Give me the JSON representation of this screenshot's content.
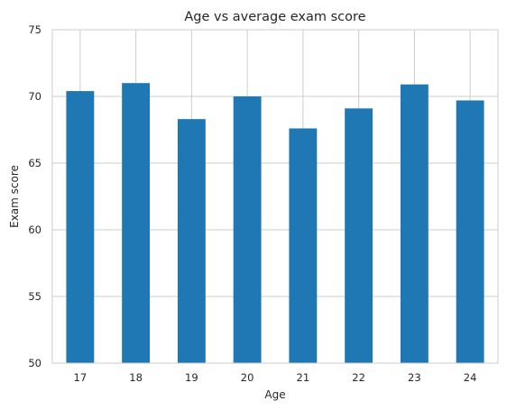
{
  "chart_data": {
    "type": "bar",
    "title": "Age vs average exam score",
    "xlabel": "Age",
    "ylabel": "Exam score",
    "categories": [
      "17",
      "18",
      "19",
      "20",
      "21",
      "22",
      "23",
      "24"
    ],
    "values": [
      70.4,
      71.0,
      68.3,
      70.0,
      67.6,
      69.1,
      70.9,
      69.7
    ],
    "ylim": [
      50,
      75
    ],
    "yticks": [
      "50",
      "55",
      "60",
      "65",
      "70",
      "75"
    ],
    "grid": true,
    "legend": "none",
    "colors": {
      "bar": "#1f77b4",
      "grid": "#cccccc",
      "axes_edge": "#cccccc",
      "text": "#262626"
    }
  }
}
